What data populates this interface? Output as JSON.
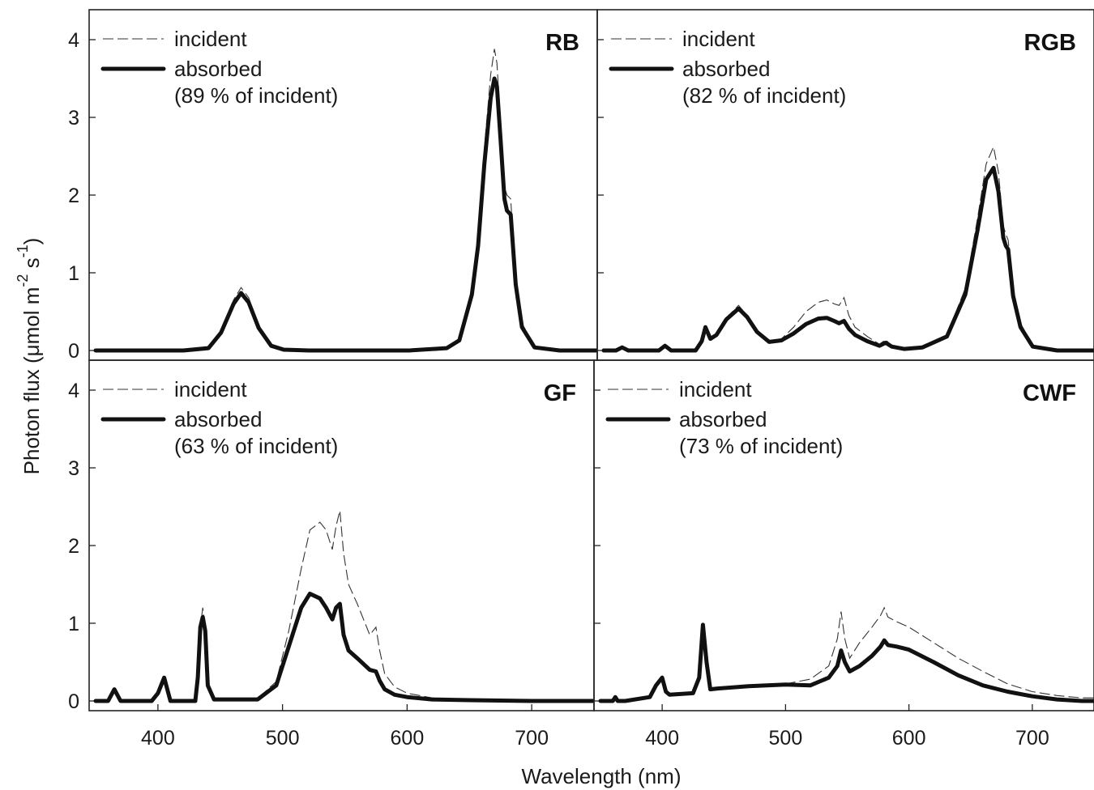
{
  "figure": {
    "xlabel": "Wavelength (nm)",
    "ylabel_text": "Photon flux (μmol m",
    "ylabel_sup1": "-2",
    "ylabel_mid": " s",
    "ylabel_sup2": "-1",
    "ylabel_end": ")"
  },
  "chart_data": [
    {
      "type": "line",
      "title": "RB",
      "xlim": [
        350,
        750
      ],
      "ylim": [
        0,
        4.5
      ],
      "xticks": [
        400,
        500,
        600,
        700
      ],
      "yticks": [
        0,
        1,
        2,
        3,
        4
      ],
      "legend": {
        "incident": "incident",
        "absorbed": "absorbed",
        "note": "(89 % of incident)",
        "placement": "top-left"
      },
      "series": [
        {
          "name": "incident",
          "style": "dashed-thin",
          "x": [
            350,
            420,
            440,
            450,
            460,
            466,
            472,
            480,
            490,
            500,
            520,
            600,
            630,
            640,
            650,
            655,
            660,
            665,
            668,
            670,
            673,
            676,
            678,
            681,
            685,
            690,
            700,
            720,
            750
          ],
          "y": [
            0,
            0,
            0.03,
            0.25,
            0.65,
            0.81,
            0.68,
            0.32,
            0.07,
            0.01,
            0,
            0,
            0.03,
            0.15,
            0.8,
            1.5,
            2.6,
            3.55,
            3.88,
            3.7,
            2.9,
            2.1,
            2.0,
            1.95,
            0.9,
            0.35,
            0.05,
            0,
            0
          ]
        },
        {
          "name": "absorbed",
          "style": "solid-thick",
          "x": [
            350,
            420,
            440,
            450,
            460,
            466,
            472,
            480,
            490,
            500,
            520,
            600,
            630,
            640,
            650,
            655,
            660,
            665,
            668,
            670,
            673,
            676,
            678,
            681,
            685,
            690,
            700,
            720,
            750
          ],
          "y": [
            0,
            0,
            0.03,
            0.23,
            0.6,
            0.74,
            0.62,
            0.29,
            0.06,
            0.01,
            0,
            0,
            0.03,
            0.13,
            0.72,
            1.35,
            2.4,
            3.25,
            3.5,
            3.4,
            2.7,
            1.95,
            1.8,
            1.75,
            0.85,
            0.3,
            0.04,
            0,
            0
          ]
        }
      ]
    },
    {
      "type": "line",
      "title": "RGB",
      "xlim": [
        350,
        750
      ],
      "ylim": [
        0,
        4.5
      ],
      "xticks": [
        400,
        500,
        600,
        700
      ],
      "yticks": [
        0,
        1,
        2,
        3,
        4
      ],
      "legend": {
        "incident": "incident",
        "absorbed": "absorbed",
        "note": "(82 % of incident)",
        "placement": "top-left"
      },
      "series": [
        {
          "name": "incident",
          "style": "dashed-thin",
          "x": [
            350,
            360,
            365,
            370,
            380,
            395,
            400,
            405,
            410,
            425,
            430,
            433,
            437,
            442,
            450,
            460,
            467,
            475,
            485,
            495,
            505,
            515,
            525,
            532,
            538,
            542,
            546,
            550,
            555,
            565,
            575,
            580,
            585,
            595,
            610,
            630,
            645,
            655,
            662,
            668,
            672,
            676,
            678,
            680,
            684,
            690,
            700,
            720,
            750
          ],
          "y": [
            0,
            0,
            0.04,
            0,
            0,
            0,
            0.06,
            0,
            0,
            0,
            0.12,
            0.3,
            0.15,
            0.22,
            0.42,
            0.58,
            0.45,
            0.25,
            0.12,
            0.15,
            0.3,
            0.5,
            0.62,
            0.65,
            0.6,
            0.58,
            0.68,
            0.45,
            0.3,
            0.18,
            0.08,
            0.14,
            0.06,
            0.03,
            0.05,
            0.2,
            0.8,
            1.7,
            2.4,
            2.62,
            2.3,
            1.6,
            1.5,
            1.42,
            0.8,
            0.35,
            0.06,
            0,
            0
          ]
        },
        {
          "name": "absorbed",
          "style": "solid-thick",
          "x": [
            350,
            360,
            365,
            370,
            380,
            395,
            400,
            405,
            410,
            425,
            430,
            433,
            437,
            442,
            450,
            460,
            467,
            475,
            485,
            495,
            505,
            515,
            525,
            532,
            538,
            542,
            546,
            550,
            555,
            565,
            575,
            580,
            585,
            595,
            610,
            630,
            645,
            655,
            662,
            668,
            672,
            676,
            678,
            680,
            684,
            690,
            700,
            720,
            750
          ],
          "y": [
            0,
            0,
            0.04,
            0,
            0,
            0,
            0.06,
            0,
            0,
            0,
            0.12,
            0.3,
            0.15,
            0.2,
            0.4,
            0.54,
            0.43,
            0.24,
            0.11,
            0.13,
            0.22,
            0.34,
            0.41,
            0.42,
            0.38,
            0.35,
            0.38,
            0.28,
            0.2,
            0.12,
            0.06,
            0.1,
            0.05,
            0.02,
            0.04,
            0.18,
            0.72,
            1.55,
            2.2,
            2.35,
            2.05,
            1.45,
            1.35,
            1.3,
            0.7,
            0.3,
            0.05,
            0,
            0
          ]
        }
      ]
    },
    {
      "type": "line",
      "title": "GF",
      "xlim": [
        350,
        750
      ],
      "ylim": [
        0,
        4.5
      ],
      "xticks": [
        400,
        500,
        600,
        700
      ],
      "yticks": [
        0,
        1,
        2,
        3,
        4
      ],
      "legend": {
        "incident": "incident",
        "absorbed": "absorbed",
        "note": "(63 % of incident)",
        "placement": "top-left"
      },
      "series": [
        {
          "name": "incident",
          "style": "dashed-thin",
          "x": [
            350,
            360,
            365,
            370,
            395,
            400,
            405,
            410,
            430,
            432,
            434,
            436,
            438,
            440,
            445,
            480,
            495,
            505,
            515,
            522,
            530,
            535,
            540,
            543,
            546,
            549,
            553,
            560,
            570,
            575,
            578,
            582,
            590,
            600,
            620,
            650,
            700,
            750
          ],
          "y": [
            0,
            0,
            0.16,
            0,
            0,
            0.1,
            0.3,
            0,
            0,
            0.3,
            0.95,
            1.2,
            0.95,
            0.2,
            0.03,
            0.03,
            0.25,
            0.9,
            1.7,
            2.2,
            2.3,
            2.2,
            1.95,
            2.25,
            2.45,
            1.9,
            1.5,
            1.25,
            0.85,
            0.95,
            0.65,
            0.35,
            0.18,
            0.1,
            0.04,
            0.02,
            0.01,
            0.01
          ]
        },
        {
          "name": "absorbed",
          "style": "solid-thick",
          "x": [
            350,
            360,
            365,
            370,
            395,
            400,
            405,
            410,
            430,
            432,
            434,
            436,
            438,
            440,
            445,
            480,
            495,
            505,
            515,
            522,
            530,
            535,
            540,
            543,
            546,
            549,
            553,
            560,
            570,
            575,
            578,
            582,
            590,
            600,
            620,
            650,
            700,
            750
          ],
          "y": [
            0,
            0,
            0.15,
            0,
            0,
            0.1,
            0.3,
            0,
            0,
            0.3,
            0.95,
            1.08,
            0.9,
            0.2,
            0.02,
            0.02,
            0.2,
            0.7,
            1.2,
            1.38,
            1.32,
            1.2,
            1.05,
            1.2,
            1.25,
            0.85,
            0.65,
            0.55,
            0.4,
            0.38,
            0.26,
            0.15,
            0.08,
            0.05,
            0.02,
            0.01,
            0.0,
            0.0
          ]
        }
      ]
    },
    {
      "type": "line",
      "title": "CWF",
      "xlim": [
        350,
        750
      ],
      "ylim": [
        0,
        4.5
      ],
      "xticks": [
        400,
        500,
        600,
        700
      ],
      "yticks": [
        0,
        1,
        2,
        3,
        4
      ],
      "legend": {
        "incident": "incident",
        "absorbed": "absorbed",
        "note": "(73 % of incident)",
        "placement": "top-left"
      },
      "series": [
        {
          "name": "incident",
          "style": "dashed-thin",
          "x": [
            350,
            360,
            362,
            364,
            370,
            390,
            395,
            400,
            403,
            406,
            425,
            430,
            433,
            436,
            439,
            445,
            470,
            500,
            520,
            535,
            542,
            545,
            548,
            552,
            560,
            570,
            577,
            580,
            583,
            590,
            600,
            620,
            640,
            660,
            680,
            700,
            720,
            740,
            750
          ],
          "y": [
            0,
            0,
            0.05,
            0,
            0,
            0.05,
            0.2,
            0.32,
            0.12,
            0.08,
            0.1,
            0.3,
            1.0,
            0.5,
            0.15,
            0.16,
            0.2,
            0.22,
            0.28,
            0.45,
            0.8,
            1.15,
            0.8,
            0.55,
            0.75,
            0.95,
            1.1,
            1.2,
            1.08,
            1.02,
            0.95,
            0.75,
            0.55,
            0.38,
            0.22,
            0.12,
            0.07,
            0.04,
            0.04
          ]
        },
        {
          "name": "absorbed",
          "style": "solid-thick",
          "x": [
            350,
            360,
            362,
            364,
            370,
            390,
            395,
            400,
            403,
            406,
            425,
            430,
            433,
            436,
            439,
            445,
            470,
            500,
            520,
            535,
            542,
            545,
            548,
            552,
            560,
            570,
            577,
            580,
            583,
            590,
            600,
            620,
            640,
            660,
            680,
            700,
            720,
            740,
            750
          ],
          "y": [
            0,
            0,
            0.05,
            0,
            0,
            0.05,
            0.2,
            0.3,
            0.12,
            0.08,
            0.1,
            0.3,
            0.98,
            0.5,
            0.15,
            0.16,
            0.19,
            0.21,
            0.2,
            0.3,
            0.45,
            0.65,
            0.5,
            0.38,
            0.45,
            0.58,
            0.7,
            0.78,
            0.72,
            0.7,
            0.66,
            0.5,
            0.33,
            0.2,
            0.12,
            0.06,
            0.02,
            0.0,
            0.0
          ]
        }
      ]
    }
  ]
}
